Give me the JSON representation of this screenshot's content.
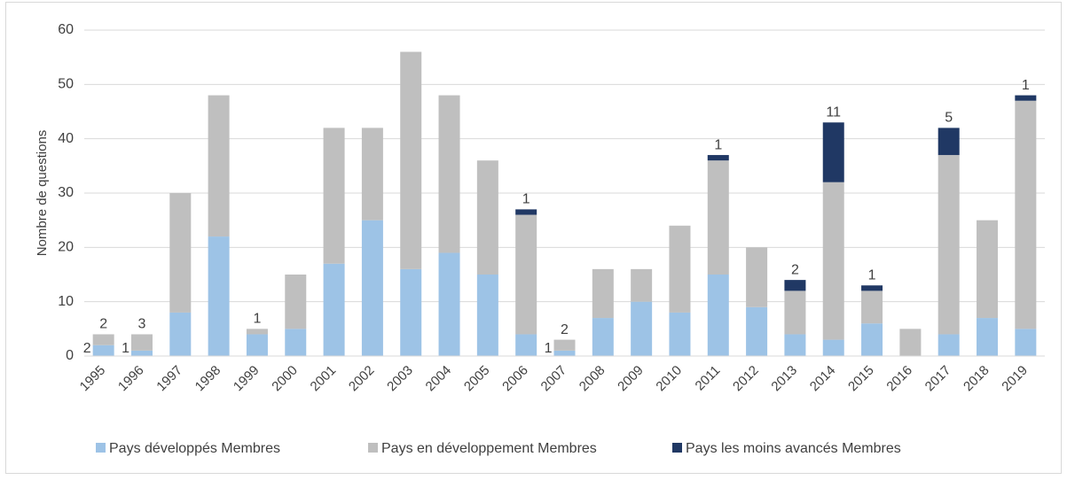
{
  "chart_data": {
    "type": "stacked_bar",
    "y_label": "Nombre de questions",
    "categories": [
      "1995",
      "1996",
      "1997",
      "1998",
      "1999",
      "2000",
      "2001",
      "2002",
      "2003",
      "2004",
      "2005",
      "2006",
      "2007",
      "2008",
      "2009",
      "2010",
      "2011",
      "2012",
      "2013",
      "2014",
      "2015",
      "2016",
      "2017",
      "2018",
      "2019"
    ],
    "series": [
      {
        "name": "Pays développés Membres",
        "color": "#9dc3e6",
        "values": [
          2,
          1,
          8,
          22,
          4,
          5,
          17,
          25,
          16,
          19,
          15,
          4,
          1,
          7,
          10,
          8,
          15,
          9,
          4,
          3,
          6,
          0,
          4,
          7,
          5
        ],
        "value_labels": [
          "2",
          "1",
          null,
          null,
          null,
          null,
          null,
          null,
          null,
          null,
          null,
          null,
          "1",
          null,
          null,
          null,
          null,
          null,
          null,
          null,
          null,
          null,
          null,
          null,
          null
        ]
      },
      {
        "name": "Pays en développement Membres",
        "color": "#bfbfbf",
        "values": [
          2,
          3,
          22,
          26,
          1,
          10,
          25,
          17,
          40,
          29,
          21,
          22,
          2,
          9,
          6,
          16,
          21,
          11,
          8,
          29,
          6,
          5,
          33,
          18,
          42
        ],
        "value_labels": [
          "2",
          "3",
          null,
          null,
          "1",
          null,
          null,
          null,
          null,
          null,
          null,
          null,
          "2",
          null,
          null,
          null,
          null,
          null,
          null,
          null,
          null,
          null,
          null,
          null,
          null
        ]
      },
      {
        "name": "Pays les moins avancés Membres",
        "color": "#203864",
        "values": [
          0,
          0,
          0,
          0,
          0,
          0,
          0,
          0,
          0,
          0,
          0,
          1,
          0,
          0,
          0,
          0,
          1,
          0,
          2,
          11,
          1,
          0,
          5,
          0,
          1
        ],
        "value_labels": [
          null,
          null,
          null,
          null,
          null,
          null,
          null,
          null,
          null,
          null,
          null,
          "1",
          null,
          null,
          null,
          null,
          "1",
          null,
          "2",
          "11",
          "1",
          null,
          "5",
          null,
          "1"
        ]
      }
    ],
    "ylim": [
      0,
      60
    ],
    "yticks": [
      0,
      10,
      20,
      30,
      40,
      50,
      60
    ],
    "grid": true,
    "legend": "bottom"
  }
}
